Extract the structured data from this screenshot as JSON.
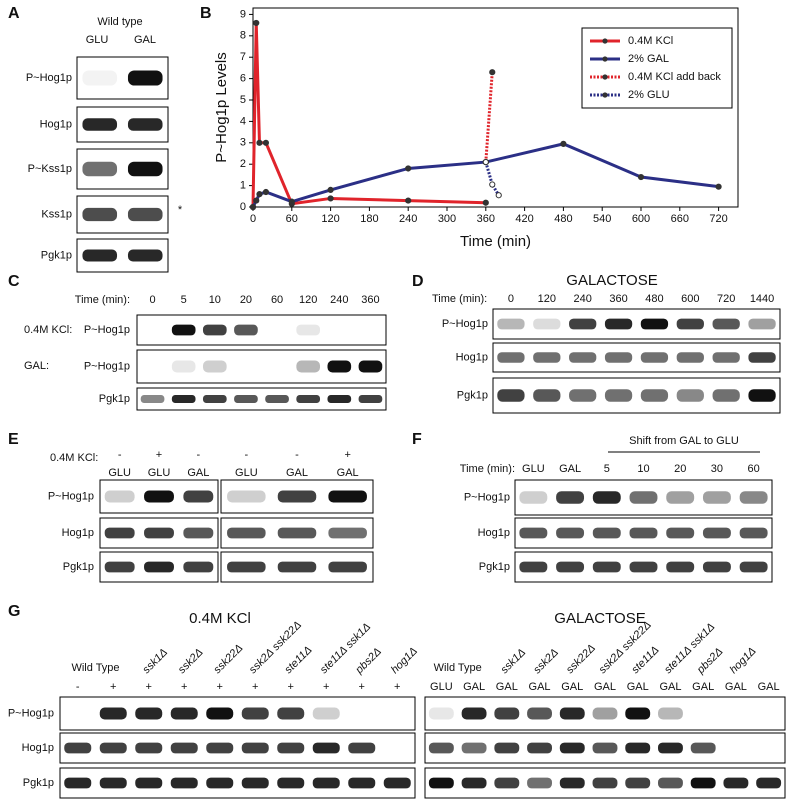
{
  "panels": {
    "A": {
      "label": "A",
      "header": "Wild type",
      "lanes": [
        "GLU",
        "GAL"
      ],
      "rows": [
        "P~Hog1p",
        "Hog1p",
        "P~Kss1p",
        "Kss1p",
        "Pgk1p"
      ],
      "note": "*"
    },
    "C": {
      "label": "C",
      "time_label": "Time (min):",
      "times": [
        "0",
        "5",
        "10",
        "20",
        "60",
        "120",
        "240",
        "360"
      ],
      "conditions": [
        "0.4M KCl:",
        "GAL:"
      ],
      "rows": [
        "P~Hog1p",
        "P~Hog1p",
        "Pgk1p"
      ]
    },
    "D": {
      "label": "D",
      "header": "GALACTOSE",
      "time_label": "Time (min):",
      "times": [
        "0",
        "120",
        "240",
        "360",
        "480",
        "600",
        "720",
        "1440"
      ],
      "rows": [
        "P~Hog1p",
        "Hog1p",
        "Pgk1p"
      ]
    },
    "E": {
      "label": "E",
      "condition": "0.4M KCl:",
      "signs": [
        "-",
        "+",
        "-",
        "-",
        "-",
        "+"
      ],
      "lanes": [
        "GLU",
        "GLU",
        "GAL",
        "GLU",
        "GAL",
        "GAL"
      ],
      "rows": [
        "P~Hog1p",
        "Hog1p",
        "Pgk1p"
      ]
    },
    "F": {
      "label": "F",
      "header": "Shift from GAL to GLU",
      "time_label": "Time (min):",
      "lanes": [
        "GLU",
        "GAL",
        "5",
        "10",
        "20",
        "30",
        "60"
      ],
      "rows": [
        "P~Hog1p",
        "Hog1p",
        "Pgk1p"
      ]
    },
    "G": {
      "label": "G",
      "left": {
        "header": "0.4M KCl",
        "wild_type": "Wild Type",
        "strains": [
          "ssk1Δ",
          "ssk2Δ",
          "ssk22Δ",
          "ssk2Δ ssk22Δ",
          "ste11Δ",
          "ste11Δ ssk1Δ",
          "pbs2Δ",
          "hog1Δ"
        ],
        "lanes": [
          "-",
          "+",
          "+",
          "+",
          "+",
          "+",
          "+",
          "+",
          "+",
          "+"
        ]
      },
      "right": {
        "header": "GALACTOSE",
        "wild_type": "Wild Type",
        "strains": [
          "ssk1Δ",
          "ssk2Δ",
          "ssk22Δ",
          "ssk2Δ ssk22Δ",
          "ste11Δ",
          "ste11Δ ssk1Δ",
          "pbs2Δ",
          "hog1Δ"
        ],
        "lanes": [
          "GLU",
          "GAL",
          "GAL",
          "GAL",
          "GAL",
          "GAL",
          "GAL",
          "GAL",
          "GAL",
          "GAL",
          "GAL"
        ]
      },
      "rows": [
        "P~Hog1p",
        "Hog1p",
        "Pgk1p"
      ]
    }
  },
  "chart_data": {
    "type": "line",
    "panel_label": "B",
    "xlabel": "Time (min)",
    "ylabel": "P~Hog1p Levels",
    "xlim": [
      0,
      750
    ],
    "xticks": [
      0,
      60,
      120,
      180,
      240,
      300,
      360,
      420,
      480,
      540,
      600,
      660,
      720
    ],
    "ylim": [
      0,
      9.3
    ],
    "yticks": [
      0,
      1,
      2,
      3,
      4,
      5,
      6,
      7,
      8,
      9
    ],
    "legend": "upper right",
    "series": [
      {
        "name": "0.4M KCl",
        "color": "#e0242b",
        "style": "solid",
        "x": [
          0,
          5,
          10,
          20,
          60,
          120,
          240,
          360
        ],
        "values": [
          0,
          8.6,
          3.0,
          3.0,
          0.15,
          0.4,
          0.3,
          0.2
        ]
      },
      {
        "name": "2% GAL",
        "color": "#2b2f86",
        "style": "solid",
        "x": [
          0,
          5,
          10,
          20,
          60,
          120,
          240,
          360,
          480,
          600,
          720
        ],
        "values": [
          0,
          0.3,
          0.6,
          0.7,
          0.25,
          0.8,
          1.8,
          2.1,
          2.95,
          1.4,
          0.95
        ]
      },
      {
        "name": "0.4M KCl add back",
        "color": "#e0242b",
        "style": "dotted",
        "x": [
          360,
          370
        ],
        "values": [
          2.1,
          6.3
        ]
      },
      {
        "name": "2% GLU",
        "color": "#2b2f86",
        "style": "dotted",
        "x": [
          360,
          370,
          380
        ],
        "values": [
          2.1,
          1.05,
          0.55
        ]
      }
    ]
  }
}
